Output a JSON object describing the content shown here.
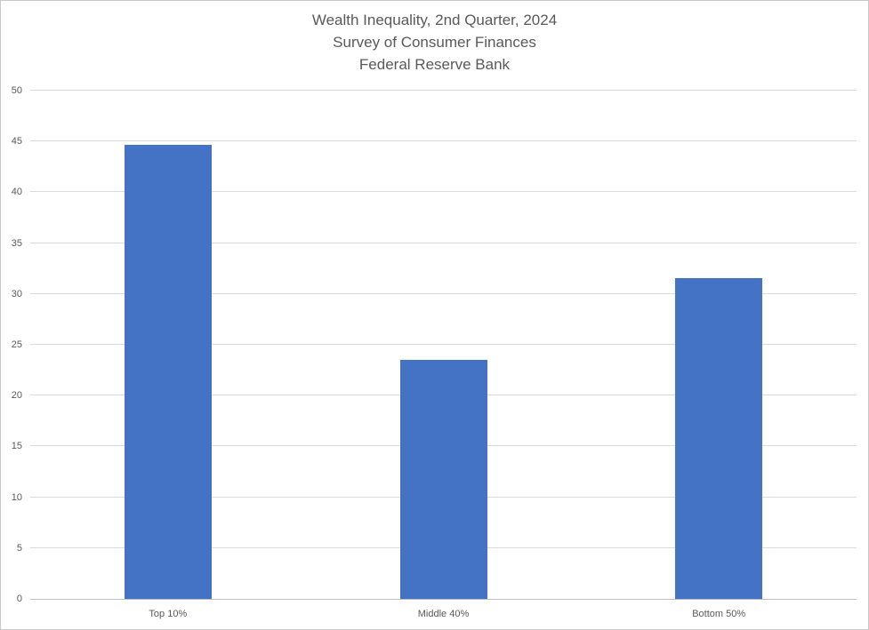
{
  "chart_data": {
    "type": "bar",
    "title": "Wealth Inequality, 2nd Quarter, 2024",
    "subtitle": "Survey of Consumer Finances",
    "subtitle2": "Federal Reserve Bank",
    "categories": [
      "Top 10%",
      "Middle 40%",
      "Bottom 50%"
    ],
    "values": [
      44.7,
      23.5,
      31.6
    ],
    "xlabel": "",
    "ylabel": "",
    "ylim": [
      0,
      50
    ],
    "ytick_step": 5,
    "yticks": [
      0,
      5,
      10,
      15,
      20,
      25,
      30,
      35,
      40,
      45,
      50
    ],
    "grid": true,
    "legend_position": "none",
    "colors": {
      "bar": "#4472C4",
      "text": "#595959",
      "gridline": "#D9D9D9",
      "axis_line": "#BFBFBF",
      "background": "#FFFFFF",
      "frame_border": "#C8C8C8"
    }
  }
}
